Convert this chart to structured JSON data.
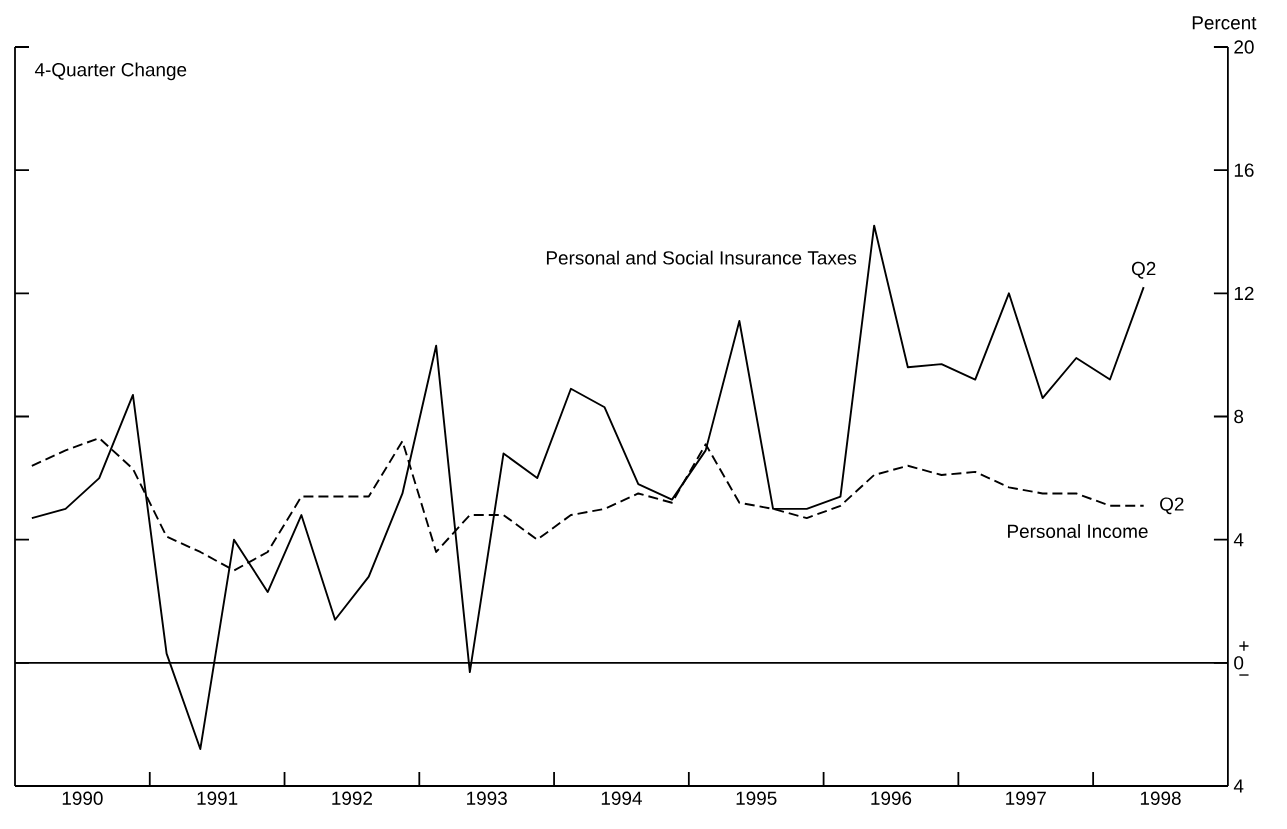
{
  "chart_data": {
    "type": "line",
    "title": "4-Quarter Change",
    "ylabel": "Percent",
    "x": [
      1990.125,
      1990.375,
      1990.625,
      1990.875,
      1991.125,
      1991.375,
      1991.625,
      1991.875,
      1992.125,
      1992.375,
      1992.625,
      1992.875,
      1993.125,
      1993.375,
      1993.625,
      1993.875,
      1994.125,
      1994.375,
      1994.625,
      1994.875,
      1995.125,
      1995.375,
      1995.625,
      1995.875,
      1996.125,
      1996.375,
      1996.625,
      1996.875,
      1997.125,
      1997.375,
      1997.625,
      1997.875,
      1998.125,
      1998.375
    ],
    "series": [
      {
        "name": "Personal and Social Insurance Taxes",
        "color": "#000000",
        "line_style": "solid",
        "values": [
          4.7,
          5.0,
          6.0,
          8.7,
          0.3,
          -2.8,
          4.0,
          2.3,
          4.8,
          1.4,
          2.8,
          5.5,
          10.3,
          -0.3,
          6.8,
          6.0,
          8.9,
          8.3,
          5.8,
          5.3,
          6.9,
          11.1,
          5.0,
          5.0,
          5.4,
          14.2,
          9.6,
          9.7,
          9.2,
          12.0,
          8.6,
          9.9,
          9.2,
          12.2
        ]
      },
      {
        "name": "Personal Income",
        "color": "#000000",
        "line_style": "dashed",
        "values": [
          6.4,
          6.9,
          7.3,
          6.3,
          4.1,
          3.6,
          3.0,
          3.6,
          5.4,
          5.4,
          5.4,
          7.2,
          3.6,
          4.8,
          4.8,
          4.0,
          4.8,
          5.0,
          5.5,
          5.2,
          7.1,
          5.2,
          5.0,
          4.7,
          5.1,
          6.1,
          6.4,
          6.1,
          6.2,
          5.7,
          5.5,
          5.5,
          5.1,
          5.1
        ]
      }
    ],
    "xlim": [
      1990,
      1999
    ],
    "xticks": [
      {
        "value": 1990.5,
        "label": "1990"
      },
      {
        "value": 1991.5,
        "label": "1991"
      },
      {
        "value": 1992.5,
        "label": "1992"
      },
      {
        "value": 1993.5,
        "label": "1993"
      },
      {
        "value": 1994.5,
        "label": "1994"
      },
      {
        "value": 1995.5,
        "label": "1995"
      },
      {
        "value": 1996.5,
        "label": "1996"
      },
      {
        "value": 1997.5,
        "label": "1997"
      },
      {
        "value": 1998.5,
        "label": "1998"
      },
      {
        "value": 1991,
        "label": null
      },
      {
        "value": 1992,
        "label": null
      },
      {
        "value": 1993,
        "label": null
      },
      {
        "value": 1994,
        "label": null
      },
      {
        "value": 1995,
        "label": null
      },
      {
        "value": 1996,
        "label": null
      },
      {
        "value": 1997,
        "label": null
      },
      {
        "value": 1998,
        "label": null
      }
    ],
    "ylim": [
      -4,
      20
    ],
    "yticks": [
      {
        "value": -4,
        "label": "4"
      },
      0,
      4,
      8,
      12,
      16,
      20
    ],
    "ref_lines": [
      {
        "axis": "y",
        "value": 0
      }
    ],
    "annotations": [
      {
        "text": "Q2",
        "x": 1998.375,
        "y": 12.2
      },
      {
        "text": "Q2",
        "x": 1998.375,
        "y": 5.1
      },
      "+",
      "−"
    ],
    "legend": false
  }
}
